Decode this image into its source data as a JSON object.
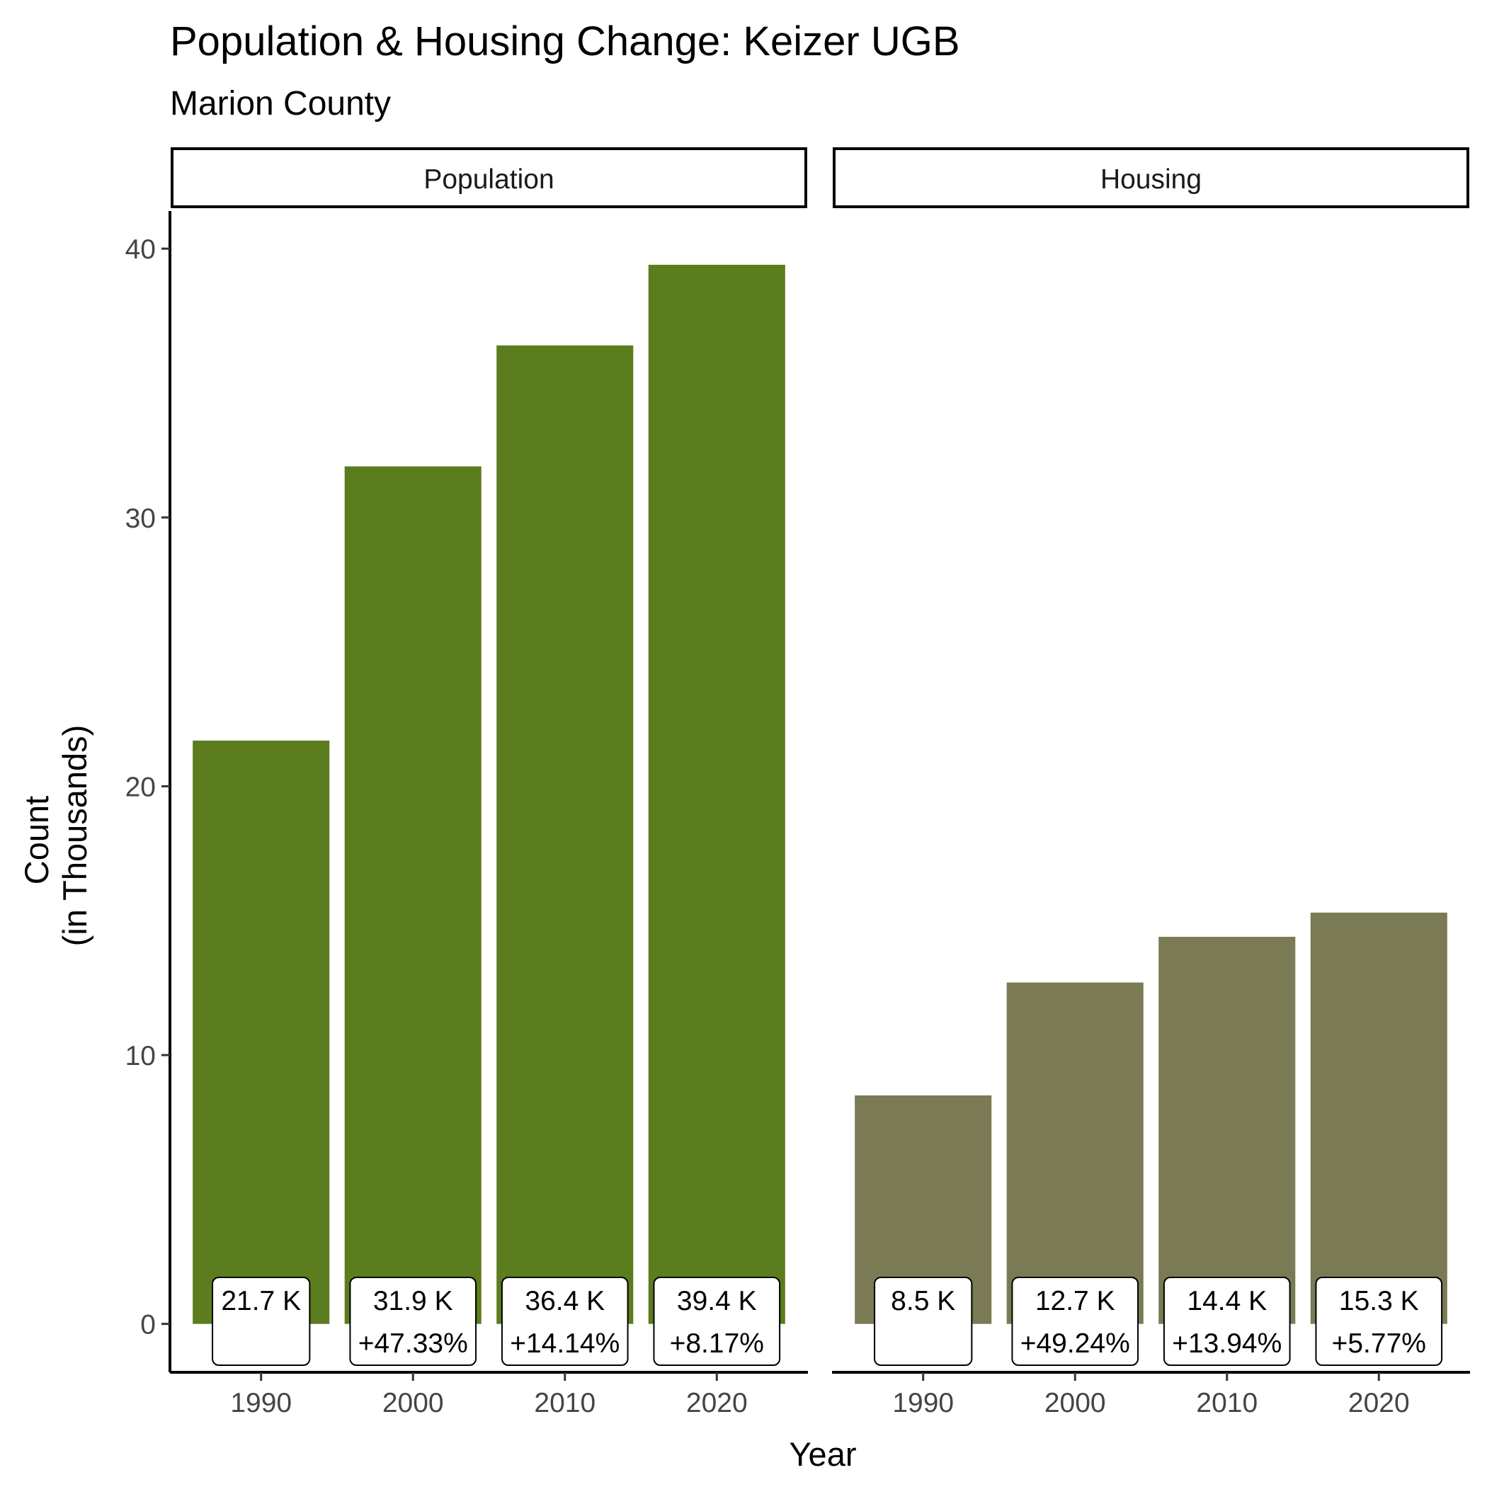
{
  "chart_data": {
    "type": "bar",
    "title": "Population & Housing Change: Keizer UGB",
    "subtitle": "Marion County",
    "xlabel": "Year",
    "ylabel_line1": "Count",
    "ylabel_line2": "(in Thousands)",
    "categories": [
      "1990",
      "2000",
      "2010",
      "2020"
    ],
    "y_ticks": [
      "0",
      "10",
      "20",
      "30",
      "40"
    ],
    "ylim": [
      -1.8,
      41.4
    ],
    "grid": false,
    "colors": {
      "Population": "#5b7d1e",
      "Housing": "#7a7a55"
    },
    "panels": [
      {
        "name": "Population",
        "values": [
          21.7,
          31.9,
          36.4,
          39.4
        ],
        "labels": [
          "21.7 K",
          "31.9 K",
          "36.4 K",
          "39.4 K"
        ],
        "changes": [
          "",
          "+47.33%",
          "+14.14%",
          "+8.17%"
        ]
      },
      {
        "name": "Housing",
        "values": [
          8.5,
          12.7,
          14.4,
          15.3
        ],
        "labels": [
          "8.5 K",
          "12.7 K",
          "14.4 K",
          "15.3 K"
        ],
        "changes": [
          "",
          "+49.24%",
          "+13.94%",
          "+5.77%"
        ]
      }
    ]
  }
}
